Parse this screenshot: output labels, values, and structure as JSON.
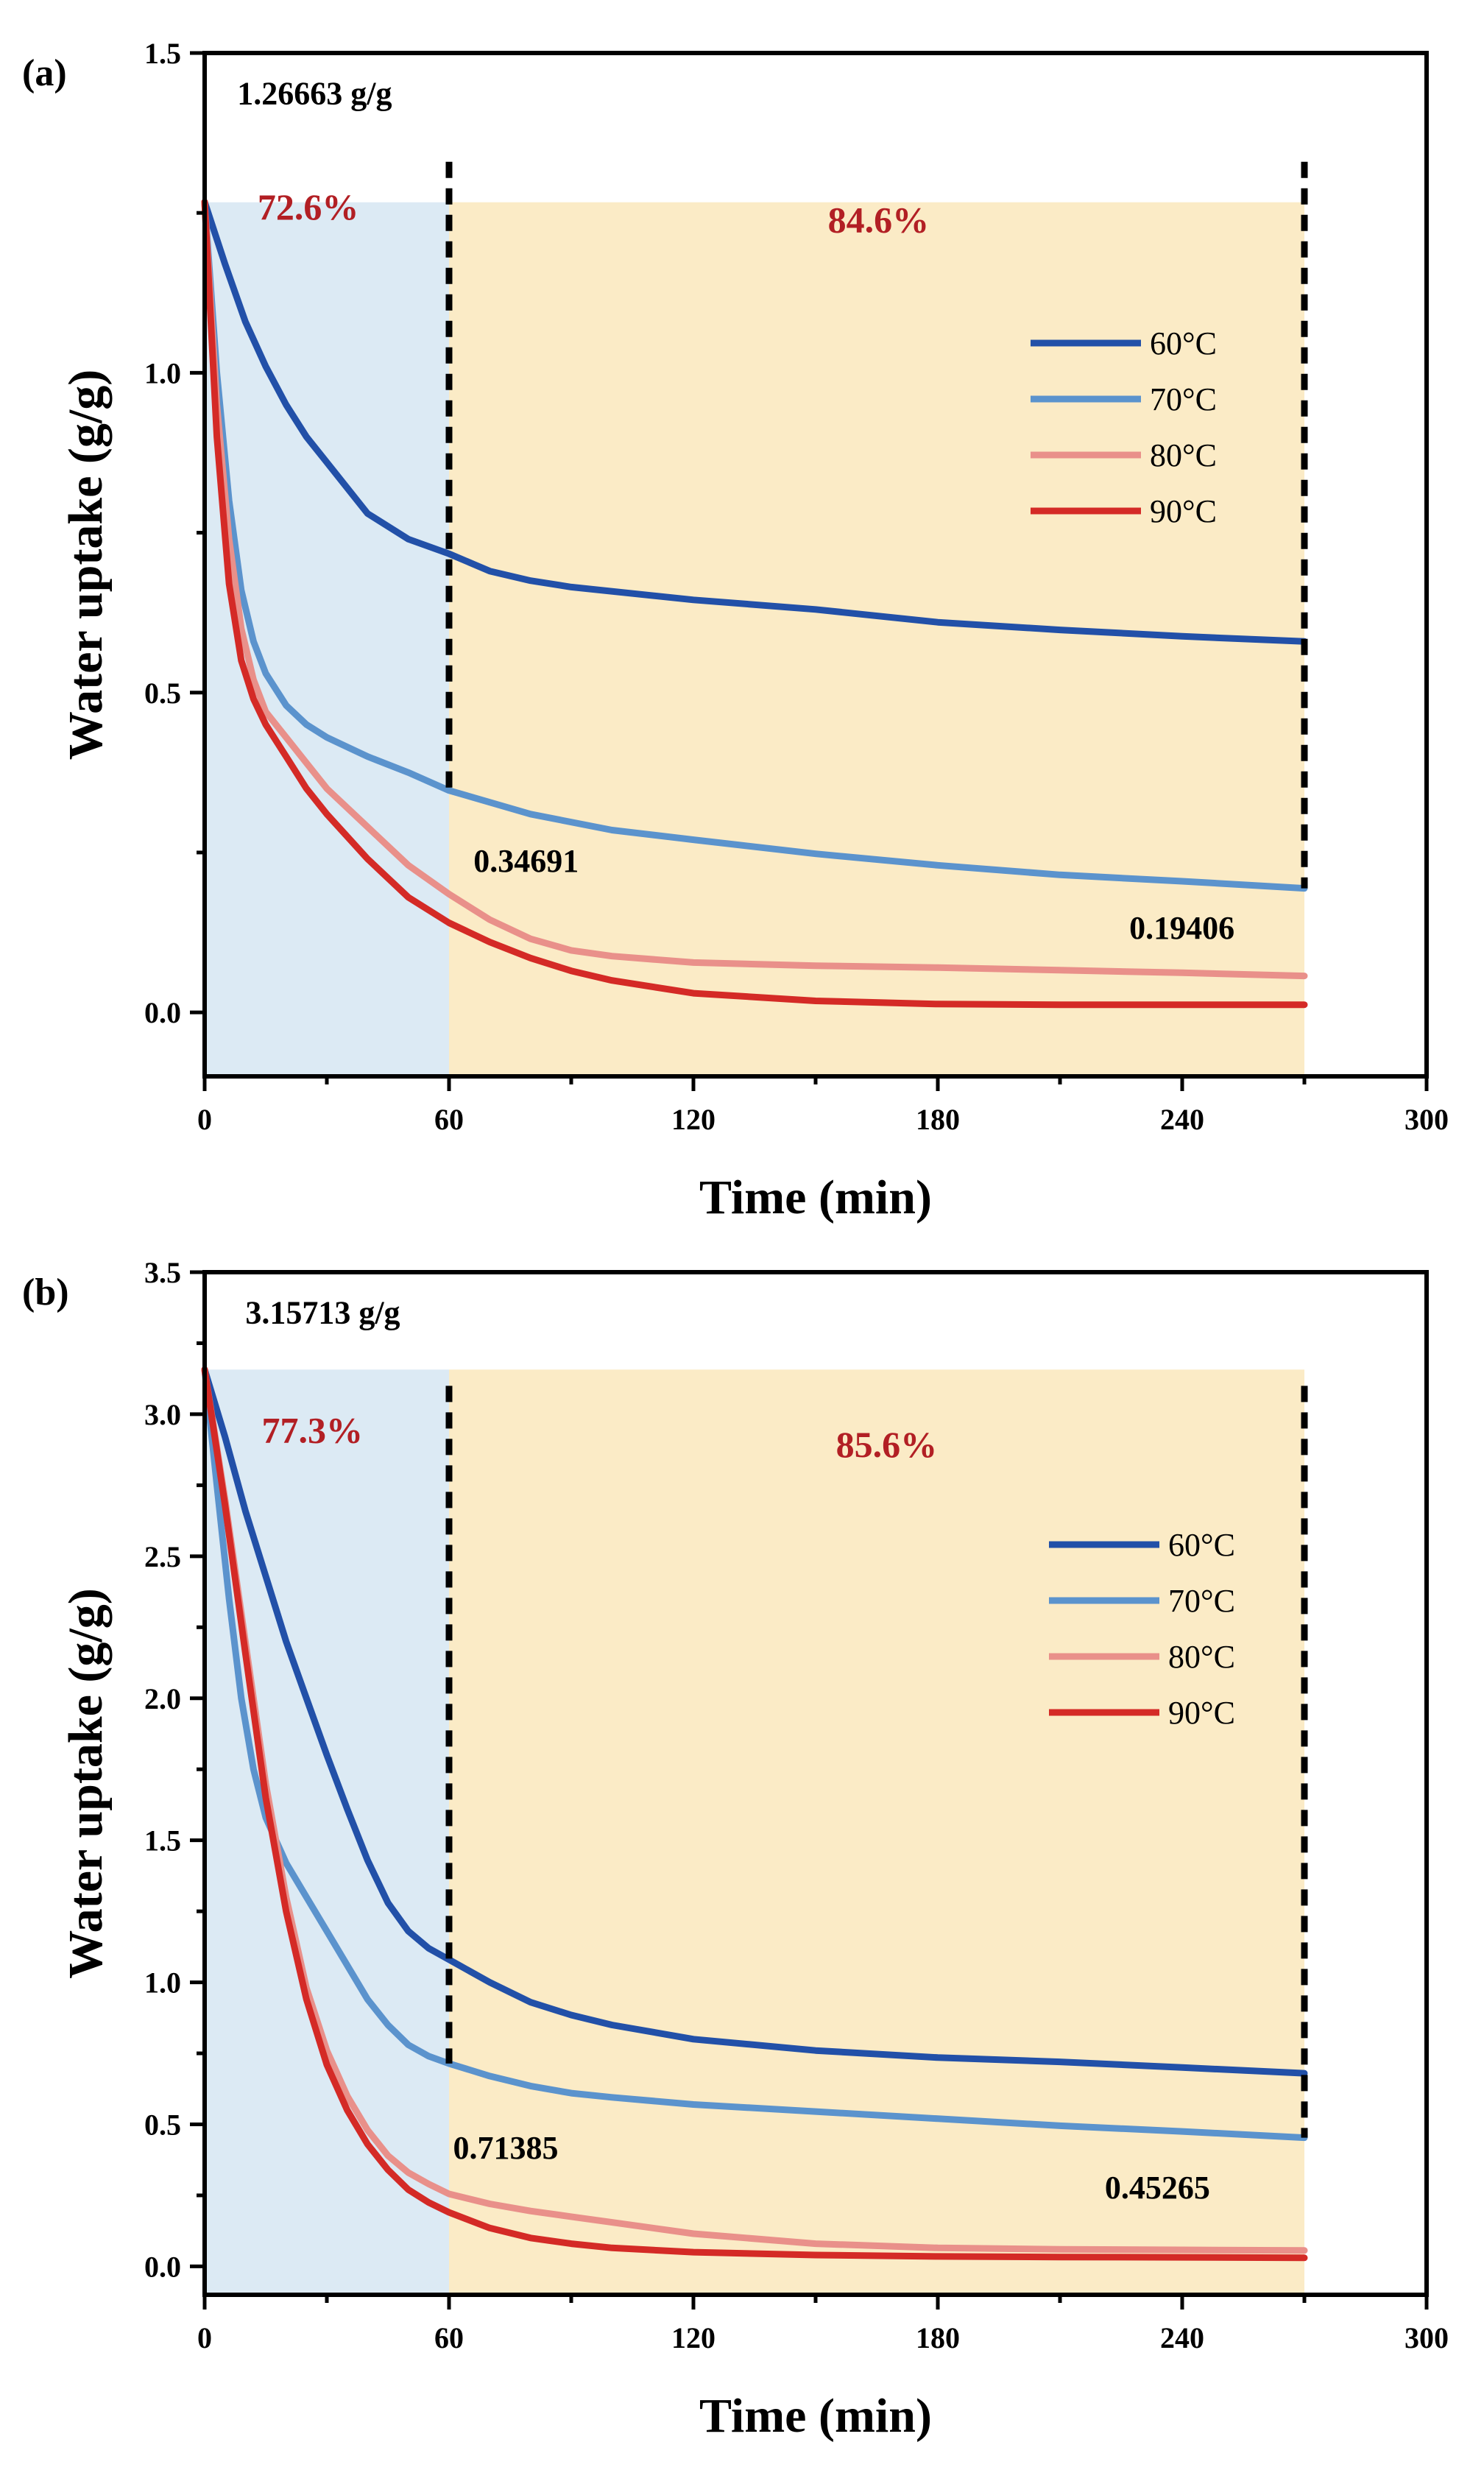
{
  "colors": {
    "c60": "#2250A8",
    "c70": "#5B93CD",
    "c80": "#E9908A",
    "c90": "#D42A26",
    "region1": "#DCEAF4",
    "region2": "#FBEBC6",
    "pct": "#B21F24"
  },
  "chart_data": [
    {
      "type": "line",
      "panel_label": "(a)",
      "xlabel": "Time (min)",
      "ylabel": "Water uptake (g/g)",
      "xlim": [
        0,
        300
      ],
      "ylim": [
        -0.1,
        1.5
      ],
      "x_ticks": [
        0,
        60,
        120,
        180,
        240,
        300
      ],
      "x_tick_labels": [
        "0",
        "60",
        "120",
        "180",
        "240",
        "300"
      ],
      "y_ticks": [
        0.0,
        0.5,
        1.0,
        1.5
      ],
      "y_tick_labels": [
        "0.0",
        "0.5",
        "1.0",
        "1.5"
      ],
      "shaded_regions": [
        {
          "x0": 0,
          "x1": 60,
          "y0": -0.1,
          "y1": 1.26663,
          "color_key": "region1"
        },
        {
          "x0": 60,
          "x1": 270,
          "y0": -0.1,
          "y1": 1.26663,
          "color_key": "region2"
        }
      ],
      "dashed_lines": [
        {
          "x": 60,
          "y0": 0.347,
          "y1": 1.33
        },
        {
          "x": 270,
          "y0": 0.194,
          "y1": 1.33
        }
      ],
      "annotations": [
        {
          "text": "1.26663 g/g",
          "x": 8,
          "y": 1.42,
          "style": "value"
        },
        {
          "text": "72.6%",
          "x": 13,
          "y": 1.24,
          "style": "percent"
        },
        {
          "text": "84.6%",
          "x": 153,
          "y": 1.22,
          "style": "percent"
        },
        {
          "text": "0.34691",
          "x": 66,
          "y": 0.22,
          "style": "value"
        },
        {
          "text": "0.19406",
          "x": 227,
          "y": 0.115,
          "style": "value"
        }
      ],
      "legend": {
        "position": "upper-right"
      },
      "series": [
        {
          "name": "60°C",
          "color_key": "c60",
          "x": [
            0,
            5,
            10,
            15,
            20,
            25,
            30,
            40,
            50,
            60,
            70,
            80,
            90,
            120,
            150,
            180,
            210,
            240,
            270
          ],
          "y": [
            1.267,
            1.17,
            1.08,
            1.01,
            0.95,
            0.9,
            0.86,
            0.78,
            0.74,
            0.717,
            0.69,
            0.675,
            0.665,
            0.645,
            0.63,
            0.61,
            0.598,
            0.588,
            0.58
          ]
        },
        {
          "name": "70°C",
          "color_key": "c70",
          "x": [
            0,
            3,
            6,
            9,
            12,
            15,
            20,
            25,
            30,
            40,
            50,
            60,
            80,
            100,
            120,
            150,
            180,
            210,
            240,
            270
          ],
          "y": [
            1.267,
            1.0,
            0.8,
            0.66,
            0.58,
            0.53,
            0.48,
            0.45,
            0.43,
            0.4,
            0.375,
            0.347,
            0.31,
            0.285,
            0.27,
            0.248,
            0.23,
            0.215,
            0.205,
            0.194
          ]
        },
        {
          "name": "80°C",
          "color_key": "c80",
          "x": [
            0,
            3,
            6,
            9,
            12,
            15,
            20,
            25,
            30,
            40,
            50,
            60,
            70,
            80,
            90,
            100,
            120,
            150,
            180,
            210,
            240,
            270
          ],
          "y": [
            1.267,
            0.95,
            0.74,
            0.6,
            0.52,
            0.47,
            0.43,
            0.39,
            0.35,
            0.29,
            0.23,
            0.185,
            0.145,
            0.115,
            0.097,
            0.088,
            0.078,
            0.073,
            0.07,
            0.066,
            0.062,
            0.057
          ]
        },
        {
          "name": "90°C",
          "color_key": "c90",
          "x": [
            0,
            3,
            6,
            9,
            12,
            15,
            20,
            25,
            30,
            40,
            50,
            60,
            70,
            80,
            90,
            100,
            120,
            150,
            180,
            210,
            240,
            270
          ],
          "y": [
            1.267,
            0.9,
            0.67,
            0.55,
            0.49,
            0.45,
            0.4,
            0.35,
            0.31,
            0.24,
            0.18,
            0.14,
            0.11,
            0.085,
            0.065,
            0.05,
            0.03,
            0.018,
            0.013,
            0.012,
            0.012,
            0.012
          ]
        }
      ]
    },
    {
      "type": "line",
      "panel_label": "(b)",
      "xlabel": "Time (min)",
      "ylabel": "Water uptake (g/g)",
      "xlim": [
        0,
        300
      ],
      "ylim": [
        -0.1,
        3.5
      ],
      "x_ticks": [
        0,
        60,
        120,
        180,
        240,
        300
      ],
      "x_tick_labels": [
        "0",
        "60",
        "120",
        "180",
        "240",
        "300"
      ],
      "y_ticks": [
        0.0,
        0.5,
        1.0,
        1.5,
        2.0,
        2.5,
        3.0,
        3.5
      ],
      "y_tick_labels": [
        "0.0",
        "0.5",
        "1.0",
        "1.5",
        "2.0",
        "2.5",
        "3.0",
        "3.5"
      ],
      "shaded_regions": [
        {
          "x0": 0,
          "x1": 60,
          "y0": -0.1,
          "y1": 3.15713,
          "color_key": "region1"
        },
        {
          "x0": 60,
          "x1": 270,
          "y0": -0.1,
          "y1": 3.15713,
          "color_key": "region2"
        }
      ],
      "dashed_lines": [
        {
          "x": 60,
          "y0": 0.714,
          "y1": 3.1
        },
        {
          "x": 270,
          "y0": 0.453,
          "y1": 3.1
        }
      ],
      "annotations": [
        {
          "text": "3.15713 g/g",
          "x": 10,
          "y": 3.32,
          "style": "value"
        },
        {
          "text": "77.3%",
          "x": 14,
          "y": 2.9,
          "style": "percent"
        },
        {
          "text": "85.6%",
          "x": 155,
          "y": 2.85,
          "style": "percent"
        },
        {
          "text": "0.71385",
          "x": 61,
          "y": 0.38,
          "style": "value"
        },
        {
          "text": "0.45265",
          "x": 221,
          "y": 0.24,
          "style": "value"
        }
      ],
      "legend": {
        "position": "upper-right"
      },
      "series": [
        {
          "name": "60°C",
          "color_key": "c60",
          "x": [
            0,
            5,
            10,
            15,
            20,
            25,
            30,
            35,
            40,
            45,
            50,
            55,
            60,
            70,
            80,
            90,
            100,
            120,
            150,
            180,
            210,
            240,
            270
          ],
          "y": [
            3.157,
            2.92,
            2.66,
            2.43,
            2.2,
            2.0,
            1.8,
            1.61,
            1.43,
            1.28,
            1.18,
            1.12,
            1.08,
            1.0,
            0.93,
            0.885,
            0.85,
            0.8,
            0.76,
            0.735,
            0.72,
            0.7,
            0.68
          ]
        },
        {
          "name": "70°C",
          "color_key": "c70",
          "x": [
            0,
            3,
            6,
            9,
            12,
            15,
            20,
            25,
            30,
            35,
            40,
            45,
            50,
            55,
            60,
            70,
            80,
            90,
            100,
            120,
            150,
            180,
            210,
            240,
            270
          ],
          "y": [
            3.157,
            2.75,
            2.35,
            2.0,
            1.75,
            1.58,
            1.42,
            1.3,
            1.18,
            1.06,
            0.94,
            0.85,
            0.78,
            0.74,
            0.714,
            0.67,
            0.635,
            0.61,
            0.595,
            0.57,
            0.545,
            0.52,
            0.495,
            0.475,
            0.453
          ]
        },
        {
          "name": "80°C",
          "color_key": "c80",
          "x": [
            0,
            5,
            10,
            15,
            20,
            25,
            30,
            35,
            40,
            45,
            50,
            55,
            60,
            70,
            80,
            90,
            100,
            120,
            150,
            180,
            210,
            240,
            270
          ],
          "y": [
            3.157,
            2.7,
            2.2,
            1.7,
            1.3,
            0.98,
            0.76,
            0.6,
            0.48,
            0.39,
            0.33,
            0.29,
            0.255,
            0.22,
            0.195,
            0.175,
            0.155,
            0.115,
            0.08,
            0.065,
            0.06,
            0.058,
            0.056
          ]
        },
        {
          "name": "90°C",
          "color_key": "c90",
          "x": [
            0,
            5,
            10,
            15,
            20,
            25,
            30,
            35,
            40,
            45,
            50,
            55,
            60,
            70,
            80,
            90,
            100,
            120,
            150,
            180,
            210,
            240,
            270
          ],
          "y": [
            3.157,
            2.68,
            2.16,
            1.65,
            1.25,
            0.94,
            0.71,
            0.55,
            0.43,
            0.34,
            0.27,
            0.225,
            0.19,
            0.135,
            0.1,
            0.08,
            0.065,
            0.05,
            0.04,
            0.035,
            0.033,
            0.032,
            0.03
          ]
        }
      ]
    }
  ]
}
